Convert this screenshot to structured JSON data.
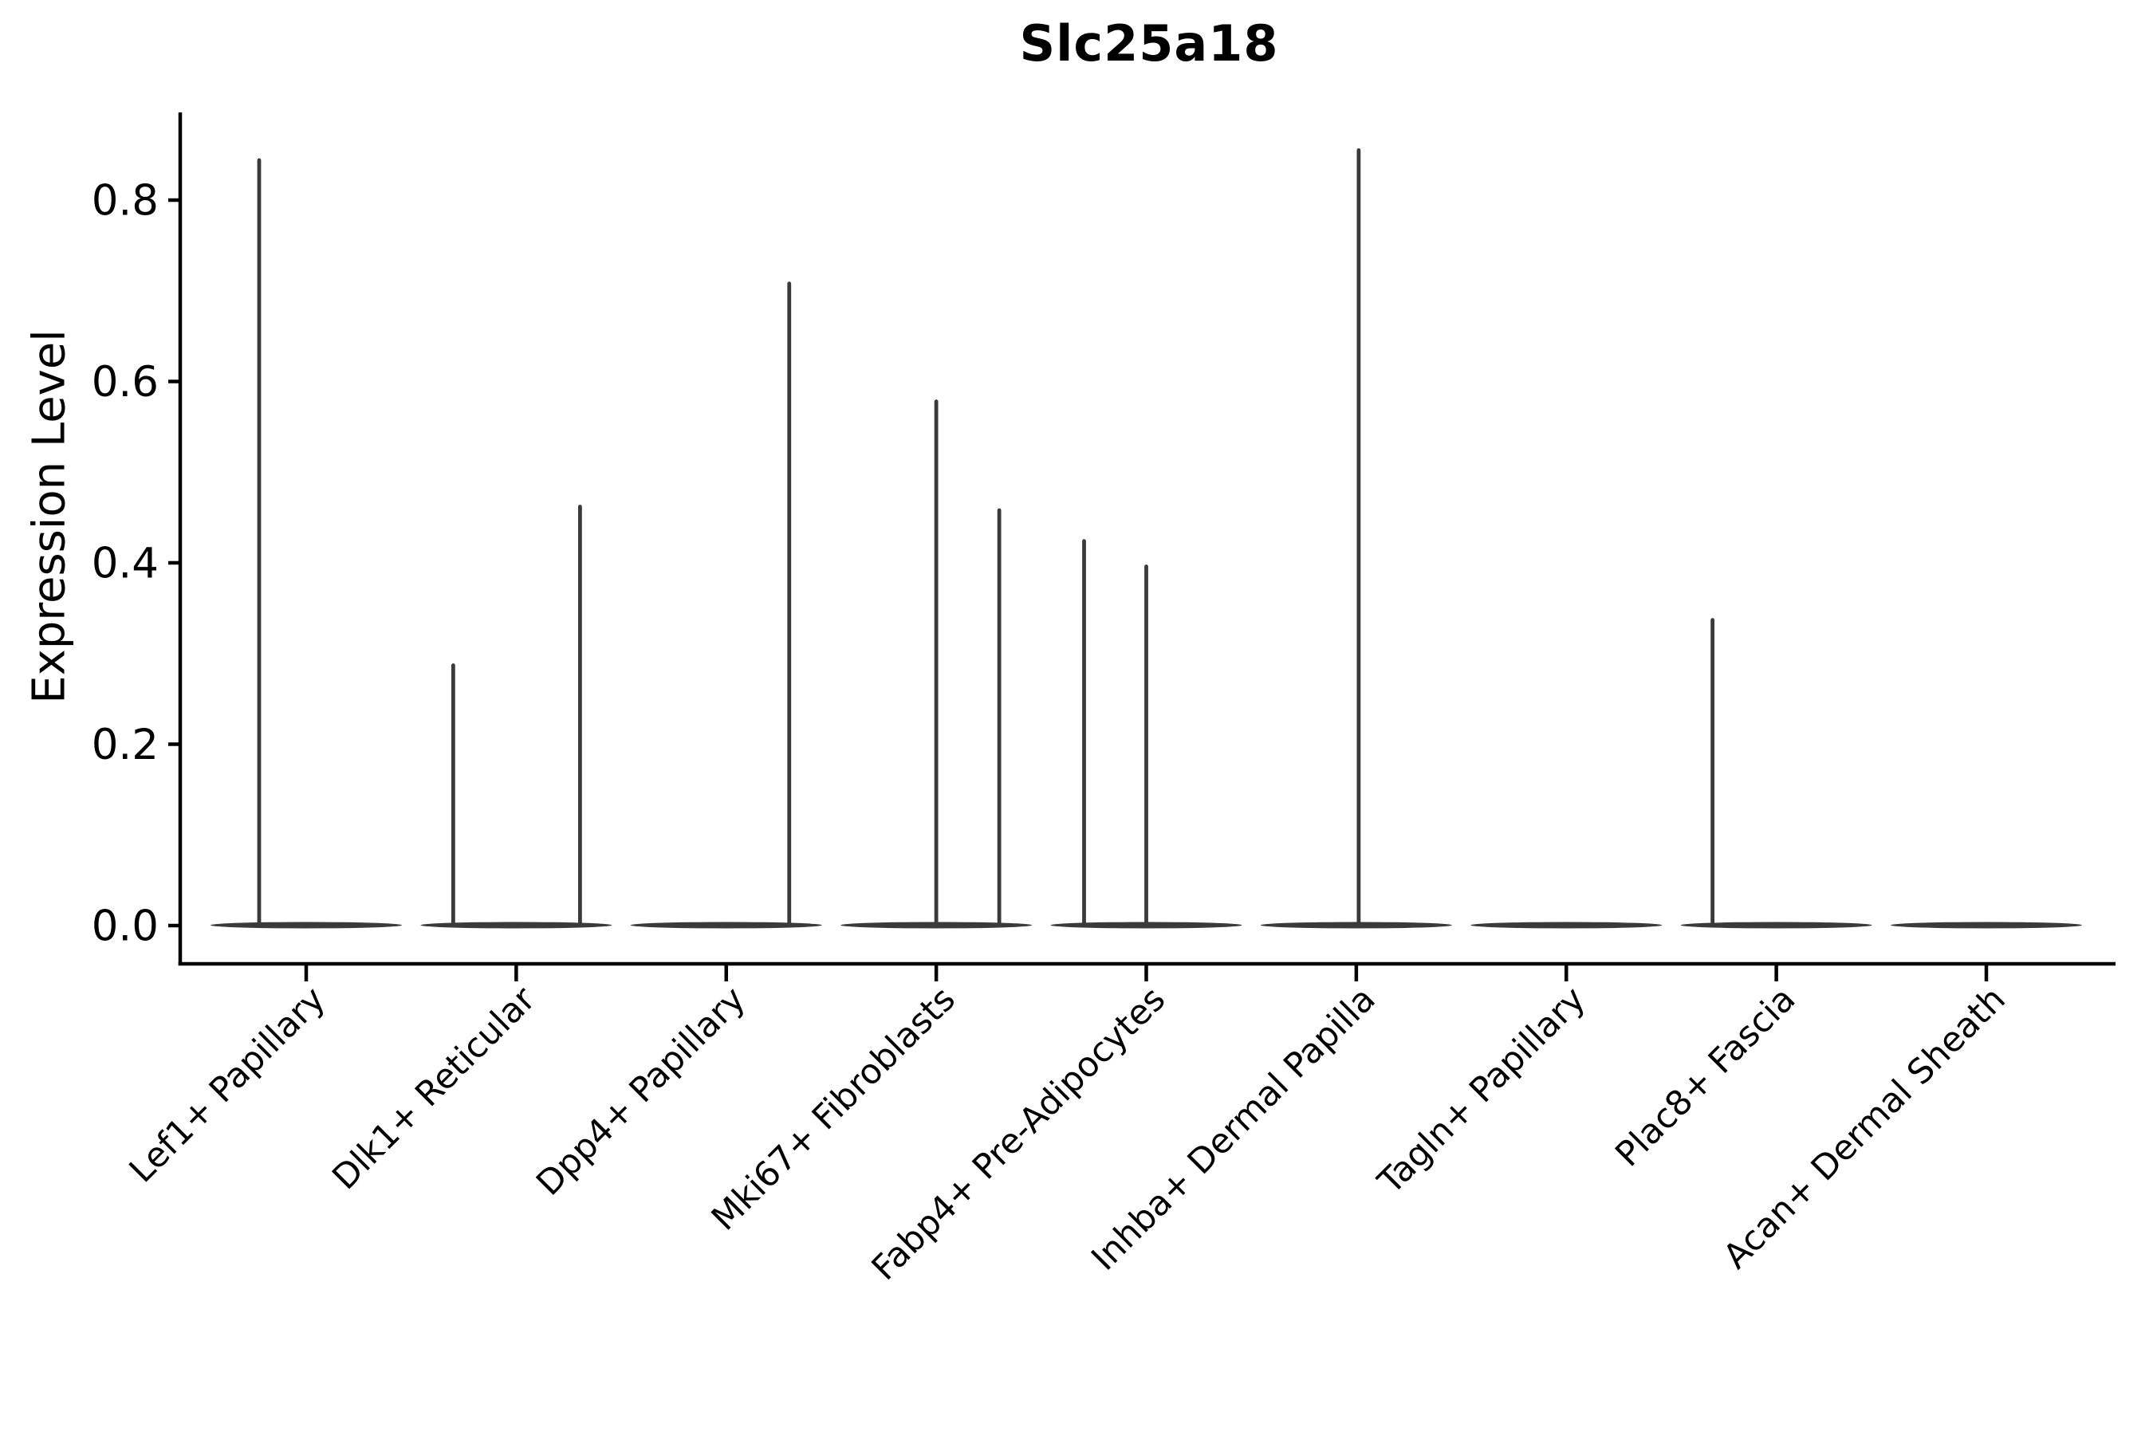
{
  "figure": {
    "title": "Slc25a18",
    "y_axis_label": "Expression Level",
    "y_tick_labels": [
      "0.0",
      "0.2",
      "0.4",
      "0.6",
      "0.8"
    ]
  },
  "chart_data": {
    "type": "violin",
    "title": "Slc25a18",
    "xlabel": "",
    "ylabel": "Expression Level",
    "ylim": [
      0,
      0.9
    ],
    "yticks": [
      0.0,
      0.2,
      0.4,
      0.6,
      0.8
    ],
    "grid": false,
    "legend": "none",
    "description": "Single-cell expression violin plot; each category shows a flat near-zero violin body with thin vertical density spikes reaching the maximum expression of rare expressing cells.",
    "categories": [
      "Lef1+ Papillary",
      "Dlk1+ Reticular",
      "Dpp4+ Papillary",
      "Mki67+ Fibroblasts",
      "Fabp4+ Pre-Adipocytes",
      "Inhba+ Dermal Papilla",
      "Tagln+ Papillary",
      "Plac8+ Fascia",
      "Acan+ Dermal Sheath"
    ],
    "violins": [
      {
        "category": "Lef1+ Papillary",
        "body_halfwidth": 120,
        "spikes": [
          {
            "dx": -59,
            "max_value": 0.844
          }
        ]
      },
      {
        "category": "Dlk1+ Reticular",
        "body_halfwidth": 120,
        "spikes": [
          {
            "dx": -79,
            "max_value": 0.287
          },
          {
            "dx": 80,
            "max_value": 0.462
          }
        ]
      },
      {
        "category": "Dpp4+ Papillary",
        "body_halfwidth": 120,
        "spikes": [
          {
            "dx": 79,
            "max_value": 0.708
          }
        ]
      },
      {
        "category": "Mki67+ Fibroblasts",
        "body_halfwidth": 120,
        "spikes": [
          {
            "dx": 0,
            "max_value": 0.578
          },
          {
            "dx": 79,
            "max_value": 0.458
          }
        ]
      },
      {
        "category": "Fabp4+ Pre-Adipocytes",
        "body_halfwidth": 120,
        "spikes": [
          {
            "dx": -78,
            "max_value": 0.424
          },
          {
            "dx": 0,
            "max_value": 0.396
          }
        ]
      },
      {
        "category": "Inhba+ Dermal Papilla",
        "body_halfwidth": 120,
        "spikes": [
          {
            "dx": 3,
            "max_value": 0.855
          }
        ]
      },
      {
        "category": "Tagln+ Papillary",
        "body_halfwidth": 120,
        "spikes": []
      },
      {
        "category": "Plac8+ Fascia",
        "body_halfwidth": 120,
        "spikes": [
          {
            "dx": -80,
            "max_value": 0.337
          }
        ]
      },
      {
        "category": "Acan+ Dermal Sheath",
        "body_halfwidth": 120,
        "spikes": []
      }
    ],
    "colors": {
      "violin": "#3a3a3a",
      "axis": "#000000",
      "background": "#ffffff"
    }
  }
}
